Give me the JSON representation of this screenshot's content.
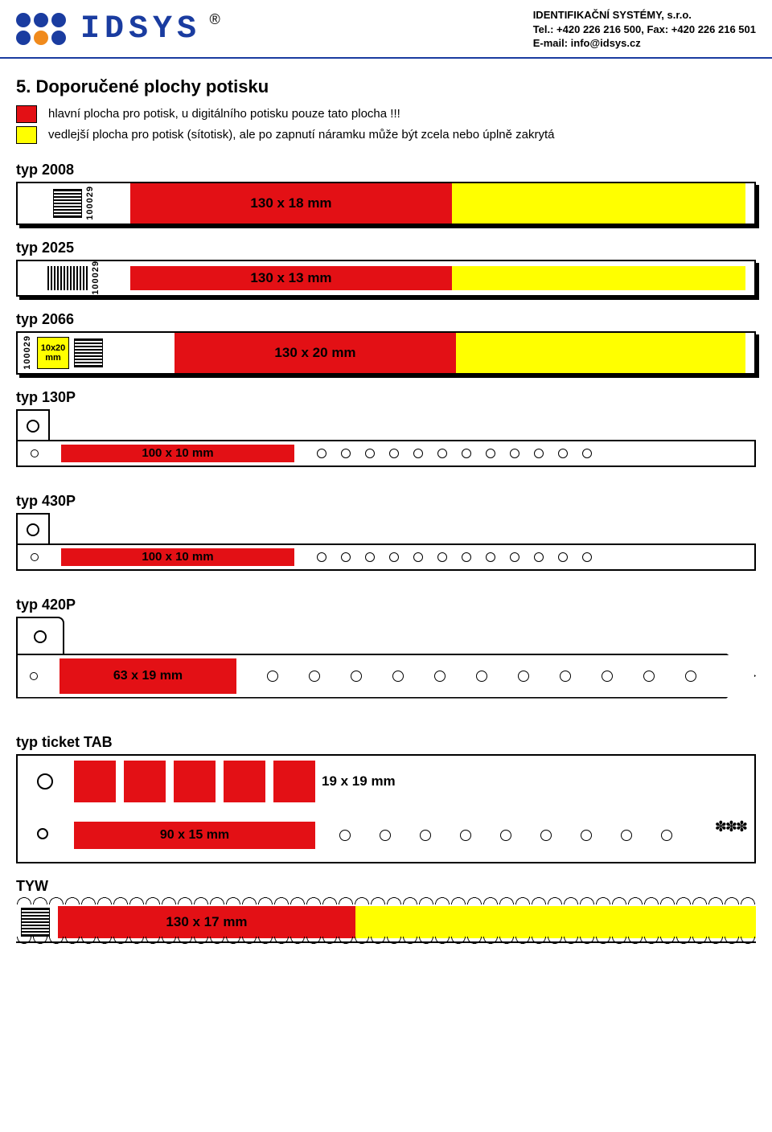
{
  "header": {
    "brand": "IDSYS",
    "reg_mark": "®",
    "company": "IDENTIFIKAČNÍ SYSTÉMY, s.r.o.",
    "tel_line": "Tel.: +420 226 216 500,  Fax: +420 226 216 501",
    "email_line": "E-mail: info@idsys.cz",
    "dot_colors": [
      "#1a3ca0",
      "#1a3ca0",
      "#1a3ca0",
      "#1a3ca0",
      "#f08a1c",
      "#1a3ca0"
    ]
  },
  "section": {
    "title": "5. Doporučené plochy potisku",
    "legend_main": "hlavní plocha pro potisk, u digitálního potisku pouze tato plocha !!!",
    "legend_alt": "vedlejší plocha pro potisk (sítotisk), ale po zapnutí náramku může být zcela nebo úplně zakrytá"
  },
  "colors": {
    "red": "#e31015",
    "yellow": "#ffff00",
    "brand_blue": "#1a3ca0",
    "black": "#000000"
  },
  "types": {
    "t2008": {
      "label": "typ 2008",
      "serial": "100029",
      "main_dim": "130 x 18 mm",
      "red_w": 400,
      "yellow_w": 365
    },
    "t2025": {
      "label": "typ 2025",
      "serial": "100029",
      "main_dim": "130 x 13 mm",
      "red_w": 400,
      "yellow_w": 365
    },
    "t2066": {
      "label": "typ 2066",
      "serial": "100029",
      "small_dim": "10x20 mm",
      "main_dim": "130 x 20 mm",
      "red_w": 350,
      "yellow_w": 360
    },
    "t130P": {
      "label": "typ 130P",
      "main_dim": "100 x 10 mm",
      "red_w": 290,
      "holes": 12
    },
    "t430P": {
      "label": "typ 430P",
      "main_dim": "100 x 10 mm",
      "red_w": 290,
      "holes": 12
    },
    "t420P": {
      "label": "typ 420P",
      "main_dim": "63 x 19 mm",
      "holes": 11
    },
    "tTicket": {
      "label": "typ ticket TAB",
      "sq_dim": "19 x 19 mm",
      "bar_dim": "90 x 15 mm",
      "squares": 5,
      "holes": 9,
      "stars": "✽✽✽"
    },
    "tTYW": {
      "label": "TYW",
      "main_dim": "130 x 17 mm"
    }
  }
}
